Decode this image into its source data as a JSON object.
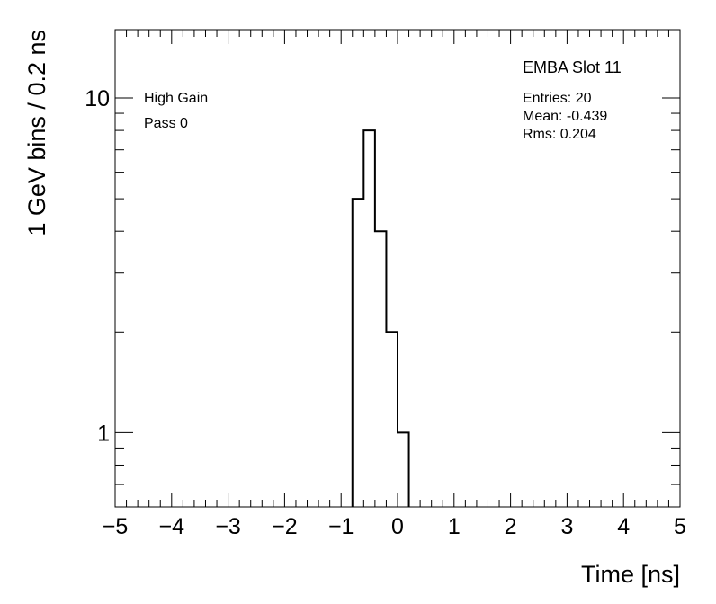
{
  "chart_data": {
    "type": "histogram",
    "title": "EMBA Slot 11",
    "xlabel": "Time [ns]",
    "ylabel": "1 GeV bins / 0.2 ns",
    "xlim": [
      -5,
      5
    ],
    "ylim": [
      0.6,
      16
    ],
    "yscale": "log",
    "grid": false,
    "x_ticks": [
      "−5",
      "−4",
      "−3",
      "−2",
      "−1",
      "0",
      "1",
      "2",
      "3",
      "4",
      "5"
    ],
    "y_ticks": [
      "1",
      "10"
    ],
    "bin_edges": [
      -0.8,
      -0.6,
      -0.4,
      -0.2,
      0.0,
      0.2
    ],
    "counts": [
      5,
      8,
      4,
      2,
      1
    ],
    "annotations": [
      "High Gain",
      "Pass 0"
    ],
    "stats": {
      "entries": "Entries: 20",
      "mean": "Mean: -0.439",
      "rms": "Rms: 0.204"
    },
    "line_color": "#000000"
  }
}
